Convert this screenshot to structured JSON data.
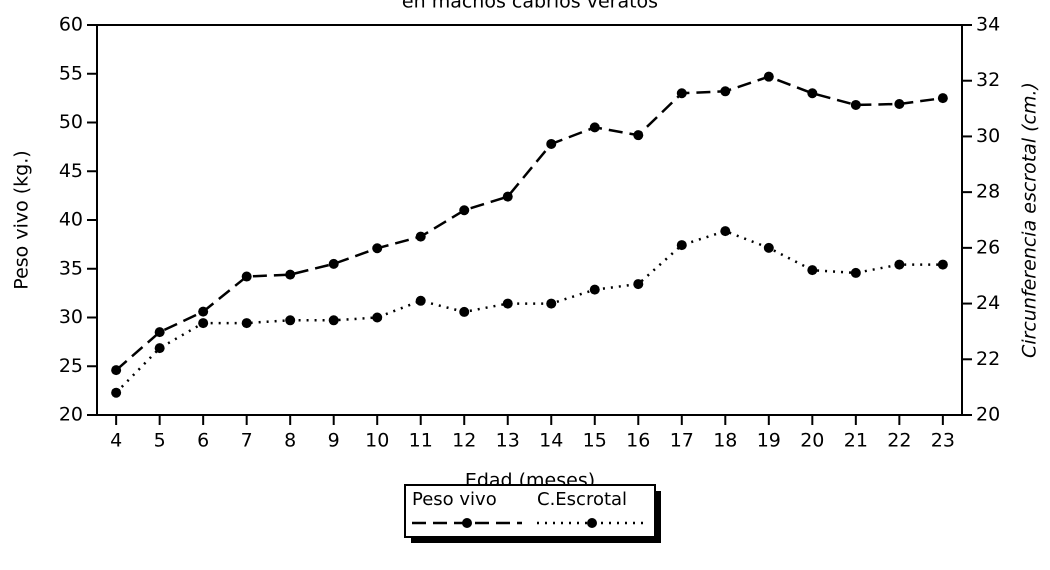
{
  "chart_data": {
    "type": "line",
    "title": "en machos cabrios veratos",
    "xlabel": "Edad (meses)",
    "ylabel": "Peso vivo (kg.)",
    "y2label": "Circunferencia escrotal (cm.)",
    "x": [
      4,
      5,
      6,
      7,
      8,
      9,
      10,
      11,
      12,
      13,
      14,
      15,
      16,
      17,
      18,
      19,
      20,
      21,
      22,
      23
    ],
    "xlim": [
      3.56,
      23.44
    ],
    "xticks": [
      4,
      5,
      6,
      7,
      8,
      9,
      10,
      11,
      12,
      13,
      14,
      15,
      16,
      17,
      18,
      19,
      20,
      21,
      22,
      23
    ],
    "ylim": [
      20,
      60
    ],
    "yticks": [
      20,
      25,
      30,
      35,
      40,
      45,
      50,
      55,
      60
    ],
    "y2lim": [
      20,
      34
    ],
    "y2ticks": [
      20,
      22,
      24,
      26,
      28,
      30,
      32,
      34
    ],
    "legend": "bottom",
    "series": [
      {
        "name": "Peso vivo",
        "color": "#000000",
        "dash": "dashed",
        "values": [
          24.6,
          28.5,
          30.6,
          34.2,
          34.4,
          35.5,
          37.1,
          38.3,
          41.0,
          42.4,
          47.8,
          49.5,
          48.7,
          53.0,
          53.2,
          54.7,
          53.0,
          51.8,
          51.9,
          52.5
        ]
      },
      {
        "name": "C.Escrotal",
        "color": "#000000",
        "dash": "dotted",
        "axis": "y2",
        "values": [
          20.8,
          22.4,
          23.3,
          23.3,
          23.4,
          23.4,
          23.5,
          24.1,
          23.7,
          24.0,
          24.0,
          24.5,
          24.7,
          26.1,
          26.6,
          26.0,
          25.2,
          25.1,
          25.4,
          25.4
        ]
      }
    ]
  }
}
